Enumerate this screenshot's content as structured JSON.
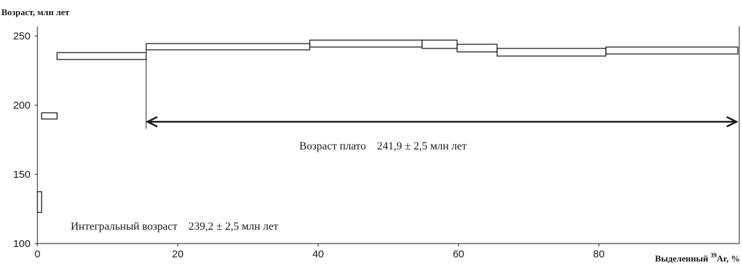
{
  "chart_data": {
    "type": "step",
    "ylabel": "Возраст,  млн лет",
    "xlabel": {
      "prefix": "Выделенный ",
      "superscript": "39",
      "suffix": "Ar, %"
    },
    "xlim": [
      0,
      100
    ],
    "ylim": [
      100,
      250
    ],
    "x_ticks": [
      0,
      20,
      40,
      60,
      80
    ],
    "y_ticks": [
      100,
      150,
      200,
      250
    ],
    "steps": [
      {
        "x0": 0.0,
        "x1": 0.6,
        "y_low": 122.5,
        "y_high": 137.5
      },
      {
        "x0": 0.6,
        "x1": 2.8,
        "y_low": 190.0,
        "y_high": 194.5
      },
      {
        "x0": 2.8,
        "x1": 15.5,
        "y_low": 233.0,
        "y_high": 238.0
      },
      {
        "x0": 15.5,
        "x1": 38.8,
        "y_low": 240.0,
        "y_high": 244.5
      },
      {
        "x0": 38.8,
        "x1": 54.8,
        "y_low": 242.0,
        "y_high": 247.0
      },
      {
        "x0": 54.8,
        "x1": 59.8,
        "y_low": 241.0,
        "y_high": 247.0
      },
      {
        "x0": 59.8,
        "x1": 65.5,
        "y_low": 238.5,
        "y_high": 244.0
      },
      {
        "x0": 65.5,
        "x1": 81.0,
        "y_low": 235.5,
        "y_high": 241.0
      },
      {
        "x0": 81.0,
        "x1": 99.8,
        "y_low": 237.0,
        "y_high": 242.0
      }
    ],
    "plateau": {
      "x_start": 15.5,
      "x_end": 99.8,
      "y_arrow": 188,
      "marker_bottom_y": 183,
      "label": "Возраст плато    241,9 ± 2,5 млн лет"
    },
    "integral_age_label": "Интегральный возраст    239,2 ± 2,5 млн лет",
    "colors": {
      "line": "#1a1a1a",
      "background": "#ffffff"
    }
  }
}
